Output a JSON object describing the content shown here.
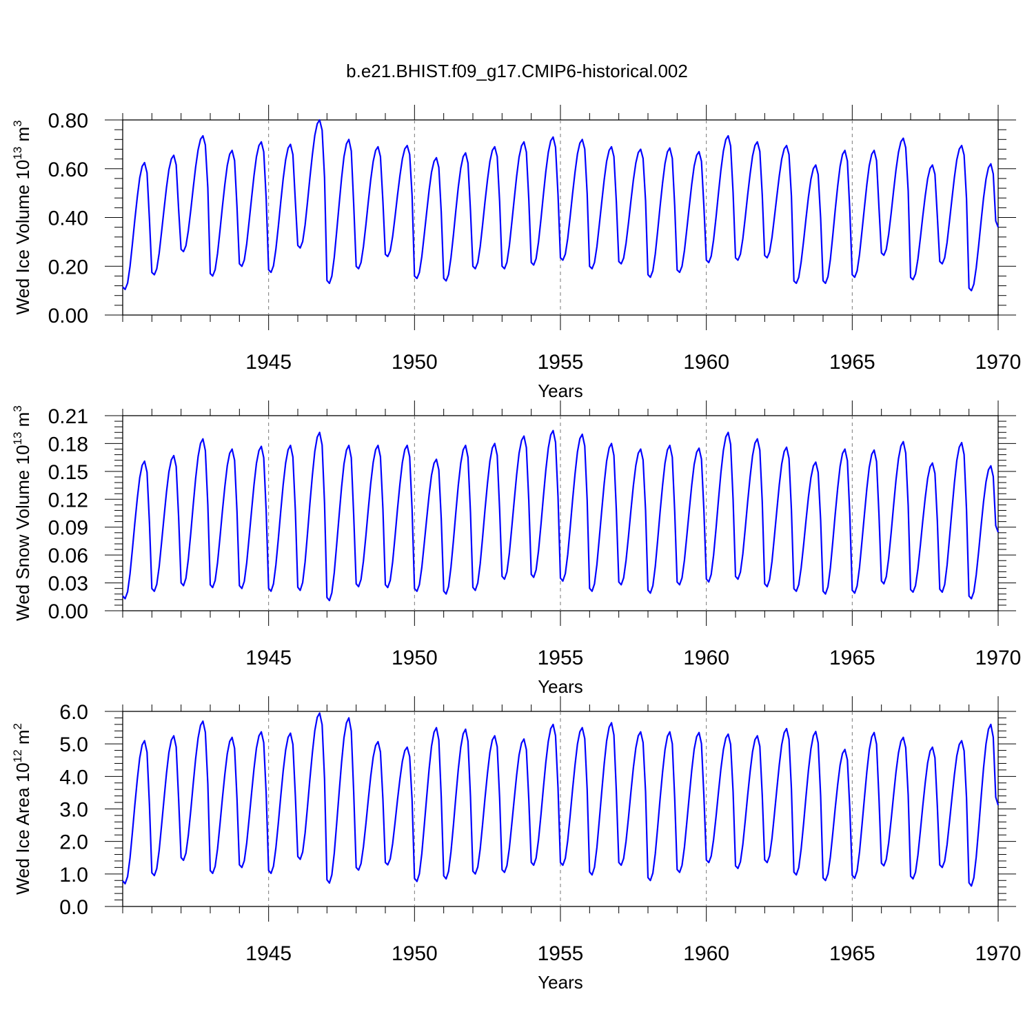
{
  "figure": {
    "title": "b.e21.BHIST.f09_g17.CMIP6-historical.002"
  },
  "chart_data": [
    {
      "type": "line",
      "title": "b.e21.BHIST.f09_g17.CMIP6-historical.002",
      "ylabel": "Wed Ice Volume 10",
      "ylabel_exp": "13",
      "ylabel_unit": " m",
      "ylabel_unit_exp": "3",
      "xlabel": "Years",
      "xlim": [
        1940.0,
        1970.0
      ],
      "x_ticks": [
        1945,
        1950,
        1955,
        1960,
        1965,
        1970
      ],
      "x_tick_labels": [
        "1945",
        "1950",
        "1955",
        "1960",
        "1965",
        "1970"
      ],
      "ylim": [
        0.0,
        0.8
      ],
      "y_ticks": [
        0.0,
        0.2,
        0.4,
        0.6,
        0.8
      ],
      "y_tick_labels": [
        "0.00",
        "0.20",
        "0.40",
        "0.60",
        "0.80"
      ],
      "line_color": "#0000ff",
      "series": [
        {
          "name": "Wed Ice Volume",
          "start_year": 1940.0,
          "step_years": 0.08333,
          "annual_max": [
            0.625,
            0.655,
            0.735,
            0.675,
            0.71,
            0.7,
            0.8,
            0.72,
            0.69,
            0.695,
            0.645,
            0.665,
            0.69,
            0.71,
            0.73,
            0.72,
            0.69,
            0.68,
            0.685,
            0.67,
            0.735,
            0.71,
            0.695,
            0.615,
            0.675,
            0.675,
            0.725,
            0.615,
            0.695,
            0.62
          ],
          "annual_min": [
            0.105,
            0.165,
            0.26,
            0.16,
            0.2,
            0.175,
            0.275,
            0.13,
            0.19,
            0.24,
            0.15,
            0.14,
            0.19,
            0.19,
            0.205,
            0.225,
            0.19,
            0.21,
            0.155,
            0.175,
            0.215,
            0.225,
            0.235,
            0.13,
            0.13,
            0.155,
            0.245,
            0.145,
            0.21,
            0.1
          ]
        }
      ]
    },
    {
      "type": "line",
      "ylabel": "Wed Snow Volume 10",
      "ylabel_exp": "13",
      "ylabel_unit": " m",
      "ylabel_unit_exp": "3",
      "xlabel": "Years",
      "xlim": [
        1940.0,
        1970.0
      ],
      "x_ticks": [
        1945,
        1950,
        1955,
        1960,
        1965,
        1970
      ],
      "x_tick_labels": [
        "1945",
        "1950",
        "1955",
        "1960",
        "1965",
        "1970"
      ],
      "ylim": [
        0.0,
        0.21
      ],
      "y_ticks": [
        0.0,
        0.03,
        0.06,
        0.09,
        0.12,
        0.15,
        0.18,
        0.21
      ],
      "y_tick_labels": [
        "0.00",
        "0.03",
        "0.06",
        "0.09",
        "0.12",
        "0.15",
        "0.18",
        "0.21"
      ],
      "line_color": "#0000ff",
      "series": [
        {
          "name": "Wed Snow Volume",
          "start_year": 1940.0,
          "step_years": 0.08333,
          "annual_max": [
            0.161,
            0.167,
            0.185,
            0.174,
            0.177,
            0.178,
            0.192,
            0.178,
            0.178,
            0.178,
            0.163,
            0.178,
            0.18,
            0.188,
            0.194,
            0.19,
            0.18,
            0.174,
            0.178,
            0.175,
            0.192,
            0.185,
            0.176,
            0.16,
            0.174,
            0.173,
            0.182,
            0.159,
            0.181,
            0.156
          ],
          "annual_min": [
            0.013,
            0.021,
            0.027,
            0.025,
            0.024,
            0.021,
            0.022,
            0.011,
            0.026,
            0.025,
            0.021,
            0.018,
            0.022,
            0.034,
            0.036,
            0.032,
            0.021,
            0.028,
            0.019,
            0.028,
            0.031,
            0.034,
            0.026,
            0.021,
            0.018,
            0.019,
            0.029,
            0.02,
            0.02,
            0.013
          ]
        }
      ]
    },
    {
      "type": "line",
      "ylabel": "Wed Ice Area 10",
      "ylabel_exp": "12",
      "ylabel_unit": " m",
      "ylabel_unit_exp": "2",
      "xlabel": "Years",
      "xlim": [
        1940.0,
        1970.0
      ],
      "x_ticks": [
        1945,
        1950,
        1955,
        1960,
        1965,
        1970
      ],
      "x_tick_labels": [
        "1945",
        "1950",
        "1955",
        "1960",
        "1965",
        "1970"
      ],
      "ylim": [
        0.0,
        6.0
      ],
      "y_ticks": [
        0.0,
        1.0,
        2.0,
        3.0,
        4.0,
        5.0,
        6.0
      ],
      "y_tick_labels": [
        "0.0",
        "1.0",
        "2.0",
        "3.0",
        "4.0",
        "5.0",
        "6.0"
      ],
      "line_color": "#0000ff",
      "series": [
        {
          "name": "Wed Ice Area",
          "start_year": 1940.0,
          "step_years": 0.08333,
          "annual_max": [
            5.1,
            5.25,
            5.7,
            5.2,
            5.37,
            5.33,
            5.95,
            5.8,
            5.07,
            4.9,
            5.5,
            5.45,
            5.25,
            5.15,
            5.6,
            5.5,
            5.65,
            5.37,
            5.37,
            5.35,
            5.3,
            5.25,
            5.47,
            5.38,
            4.83,
            5.35,
            5.2,
            4.9,
            5.1,
            5.6
          ],
          "annual_min": [
            0.7,
            0.95,
            1.42,
            1.02,
            1.2,
            1.02,
            1.45,
            0.72,
            1.12,
            1.28,
            0.77,
            0.85,
            1.0,
            1.05,
            1.27,
            1.27,
            0.97,
            1.27,
            0.8,
            1.05,
            1.35,
            1.17,
            1.35,
            0.97,
            0.8,
            0.87,
            1.25,
            0.85,
            1.2,
            0.63
          ]
        }
      ]
    }
  ]
}
